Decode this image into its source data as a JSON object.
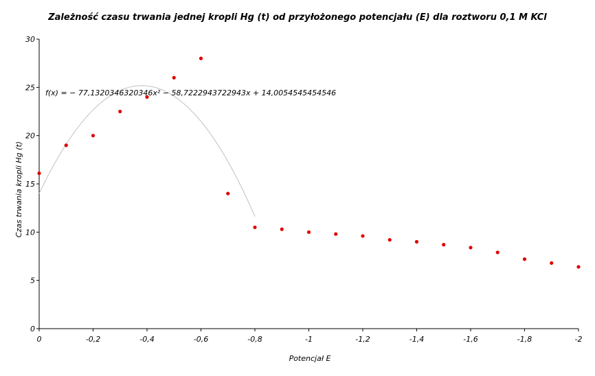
{
  "chart_data": {
    "type": "scatter",
    "title": "Zależność czasu trwania jednej kropli Hg (t) od przyłożonego potencjału (E) dla roztworu 0,1 M KCl",
    "xlabel": "Potencjał E",
    "ylabel": "Czas trwania kropli Hg (t)",
    "xlim": [
      0,
      -2
    ],
    "ylim": [
      0,
      30
    ],
    "x_ticks": [
      "0",
      "-0,2",
      "-0,4",
      "-0,6",
      "-0,8",
      "-1",
      "-1,2",
      "-1,4",
      "-1,6",
      "-1,8",
      "-2"
    ],
    "y_ticks": [
      "0",
      "5",
      "10",
      "15",
      "20",
      "25",
      "30"
    ],
    "grid": false,
    "marker_color": "#e00000",
    "fit_color": "#c0c0c0",
    "points": {
      "x": [
        0,
        -0.1,
        -0.2,
        -0.3,
        -0.4,
        -0.5,
        -0.6,
        -0.7,
        -0.8,
        -0.9,
        -1.0,
        -1.1,
        -1.2,
        -1.3,
        -1.4,
        -1.5,
        -1.6,
        -1.7,
        -1.8,
        -1.9,
        -2.0
      ],
      "y": [
        16.1,
        19.0,
        20.0,
        22.5,
        24.0,
        26.0,
        28.0,
        14.0,
        10.5,
        10.3,
        10.0,
        9.8,
        9.6,
        9.2,
        9.0,
        8.7,
        8.4,
        7.9,
        7.2,
        6.8,
        6.4
      ]
    },
    "fit": {
      "equation": "f(x) = − 77,1320346320346x² − 58,7222943722943x + 14,0054545454546",
      "a": -77.1320346320346,
      "b": -58.7222943722943,
      "c": 14.0054545454546,
      "x_range": [
        0,
        -0.8
      ]
    }
  }
}
